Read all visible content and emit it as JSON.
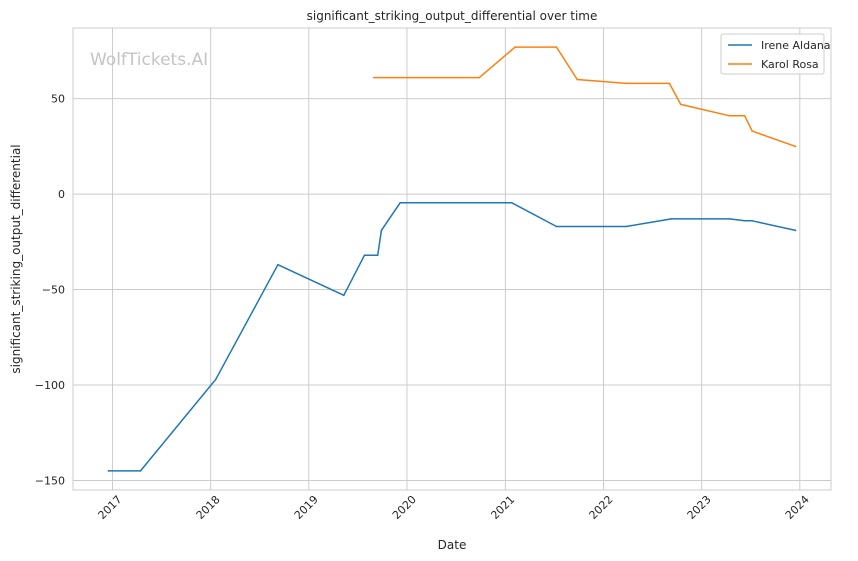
{
  "chart_data": {
    "type": "line",
    "title": "significant_striking_output_differential over time",
    "xlabel": "Date",
    "ylabel": "significant_striking_output_differential",
    "watermark": "WolfTickets.AI",
    "x_ticks": [
      "2017",
      "2018",
      "2019",
      "2020",
      "2021",
      "2022",
      "2023",
      "2024"
    ],
    "y_ticks": [
      -150,
      -100,
      -50,
      0,
      50
    ],
    "xlim": [
      "2016-08-07",
      "2024-04-26"
    ],
    "ylim": [
      -155,
      87
    ],
    "grid": true,
    "legend_position": "top-right",
    "series": [
      {
        "name": "Irene Aldana",
        "color": "#1f77b4",
        "points": [
          [
            "2016-12-17",
            -145
          ],
          [
            "2017-04-15",
            -145
          ],
          [
            "2018-01-20",
            -97
          ],
          [
            "2018-09-08",
            -37
          ],
          [
            "2019-05-11",
            -53
          ],
          [
            "2019-07-27",
            -32
          ],
          [
            "2019-09-14",
            -32
          ],
          [
            "2019-09-28",
            -19
          ],
          [
            "2019-12-07",
            -4.5
          ],
          [
            "2021-01-24",
            -4.5
          ],
          [
            "2021-07-10",
            -17
          ],
          [
            "2022-03-26",
            -17
          ],
          [
            "2022-09-10",
            -13
          ],
          [
            "2023-04-15",
            -13
          ],
          [
            "2023-06-10",
            -14
          ],
          [
            "2023-07-08",
            -14
          ],
          [
            "2023-12-16",
            -19
          ]
        ]
      },
      {
        "name": "Karol Rosa",
        "color": "#ff7f0e",
        "points": [
          [
            "2019-08-31",
            61
          ],
          [
            "2020-09-26",
            61
          ],
          [
            "2021-02-06",
            77
          ],
          [
            "2021-07-10",
            77
          ],
          [
            "2021-09-25",
            60
          ],
          [
            "2022-03-26",
            58
          ],
          [
            "2022-09-03",
            58
          ],
          [
            "2022-10-15",
            47
          ],
          [
            "2023-04-15",
            41
          ],
          [
            "2023-06-10",
            41
          ],
          [
            "2023-07-08",
            33
          ],
          [
            "2023-12-16",
            25
          ]
        ]
      }
    ]
  }
}
